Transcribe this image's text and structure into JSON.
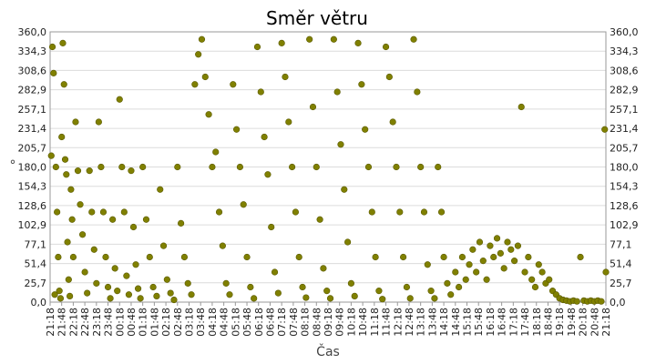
{
  "chart_data": {
    "type": "scatter",
    "title": "Směr větru",
    "xlabel": "Čas",
    "ylabel": "°",
    "ylim": [
      0,
      360
    ],
    "y_ticks": [
      "0,0",
      "25,7",
      "51,4",
      "77,1",
      "102,9",
      "128,6",
      "154,3",
      "180,0",
      "205,7",
      "231,4",
      "257,1",
      "282,9",
      "308,6",
      "334,3",
      "360,0"
    ],
    "x_ticks": [
      "21:18",
      "21:48",
      "22:18",
      "22:48",
      "23:18",
      "23:48",
      "00:18",
      "00:48",
      "01:18",
      "01:48",
      "02:18",
      "02:48",
      "03:18",
      "03:48",
      "04:18",
      "04:48",
      "05:18",
      "05:48",
      "06:18",
      "06:48",
      "07:18",
      "07:48",
      "08:18",
      "08:48",
      "09:18",
      "09:48",
      "10:18",
      "10:48",
      "11:18",
      "11:48",
      "12:18",
      "12:48",
      "13:18",
      "13:48",
      "14:18",
      "14:48",
      "15:18",
      "15:48",
      "16:18",
      "16:48",
      "17:18",
      "17:48",
      "18:18",
      "18:48",
      "19:18",
      "19:48",
      "20:18",
      "20:48",
      "21:18"
    ],
    "grid": true,
    "color": "#808000",
    "series": [
      {
        "points": [
          [
            0.1,
            195
          ],
          [
            0.2,
            340
          ],
          [
            0.3,
            305
          ],
          [
            0.4,
            10
          ],
          [
            0.5,
            180
          ],
          [
            0.6,
            120
          ],
          [
            0.7,
            60
          ],
          [
            0.8,
            15
          ],
          [
            0.9,
            5
          ],
          [
            1.0,
            220
          ],
          [
            1.1,
            345
          ],
          [
            1.2,
            290
          ],
          [
            1.3,
            190
          ],
          [
            1.4,
            170
          ],
          [
            1.5,
            80
          ],
          [
            1.6,
            30
          ],
          [
            1.7,
            8
          ],
          [
            1.8,
            150
          ],
          [
            1.9,
            110
          ],
          [
            2.0,
            60
          ],
          [
            2.2,
            240
          ],
          [
            2.4,
            175
          ],
          [
            2.6,
            130
          ],
          [
            2.8,
            90
          ],
          [
            3.0,
            40
          ],
          [
            3.2,
            12
          ],
          [
            3.4,
            175
          ],
          [
            3.6,
            120
          ],
          [
            3.8,
            70
          ],
          [
            4.0,
            25
          ],
          [
            4.2,
            240
          ],
          [
            4.4,
            180
          ],
          [
            4.6,
            120
          ],
          [
            4.8,
            60
          ],
          [
            5.0,
            20
          ],
          [
            5.2,
            5
          ],
          [
            5.4,
            110
          ],
          [
            5.6,
            45
          ],
          [
            5.8,
            15
          ],
          [
            6.0,
            270
          ],
          [
            6.2,
            180
          ],
          [
            6.4,
            120
          ],
          [
            6.6,
            35
          ],
          [
            6.8,
            10
          ],
          [
            7.0,
            175
          ],
          [
            7.2,
            100
          ],
          [
            7.4,
            50
          ],
          [
            7.6,
            18
          ],
          [
            7.8,
            5
          ],
          [
            8.0,
            180
          ],
          [
            8.3,
            110
          ],
          [
            8.6,
            60
          ],
          [
            8.9,
            20
          ],
          [
            9.2,
            8
          ],
          [
            9.5,
            150
          ],
          [
            9.8,
            75
          ],
          [
            10.1,
            30
          ],
          [
            10.4,
            12
          ],
          [
            10.7,
            3
          ],
          [
            11.0,
            180
          ],
          [
            11.3,
            105
          ],
          [
            11.6,
            60
          ],
          [
            11.9,
            25
          ],
          [
            12.2,
            10
          ],
          [
            12.5,
            290
          ],
          [
            12.8,
            330
          ],
          [
            13.1,
            350
          ],
          [
            13.4,
            300
          ],
          [
            13.7,
            250
          ],
          [
            14.0,
            180
          ],
          [
            14.3,
            200
          ],
          [
            14.6,
            120
          ],
          [
            14.9,
            75
          ],
          [
            15.2,
            25
          ],
          [
            15.5,
            10
          ],
          [
            15.8,
            290
          ],
          [
            16.1,
            230
          ],
          [
            16.4,
            180
          ],
          [
            16.7,
            130
          ],
          [
            17.0,
            60
          ],
          [
            17.3,
            20
          ],
          [
            17.6,
            5
          ],
          [
            17.9,
            340
          ],
          [
            18.2,
            280
          ],
          [
            18.5,
            220
          ],
          [
            18.8,
            170
          ],
          [
            19.1,
            100
          ],
          [
            19.4,
            40
          ],
          [
            19.7,
            12
          ],
          [
            20.0,
            345
          ],
          [
            20.3,
            300
          ],
          [
            20.6,
            240
          ],
          [
            20.9,
            180
          ],
          [
            21.2,
            120
          ],
          [
            21.5,
            60
          ],
          [
            21.8,
            20
          ],
          [
            22.1,
            6
          ],
          [
            22.4,
            350
          ],
          [
            22.7,
            260
          ],
          [
            23.0,
            180
          ],
          [
            23.3,
            110
          ],
          [
            23.6,
            45
          ],
          [
            23.9,
            15
          ],
          [
            24.2,
            5
          ],
          [
            24.5,
            350
          ],
          [
            24.8,
            280
          ],
          [
            25.1,
            210
          ],
          [
            25.4,
            150
          ],
          [
            25.7,
            80
          ],
          [
            26.0,
            25
          ],
          [
            26.3,
            8
          ],
          [
            26.6,
            345
          ],
          [
            26.9,
            290
          ],
          [
            27.2,
            230
          ],
          [
            27.5,
            180
          ],
          [
            27.8,
            120
          ],
          [
            28.1,
            60
          ],
          [
            28.4,
            15
          ],
          [
            28.7,
            4
          ],
          [
            29.0,
            340
          ],
          [
            29.3,
            300
          ],
          [
            29.6,
            240
          ],
          [
            29.9,
            180
          ],
          [
            30.2,
            120
          ],
          [
            30.5,
            60
          ],
          [
            30.8,
            20
          ],
          [
            31.1,
            5
          ],
          [
            31.4,
            350
          ],
          [
            31.7,
            280
          ],
          [
            32.0,
            180
          ],
          [
            32.3,
            120
          ],
          [
            32.6,
            50
          ],
          [
            32.9,
            15
          ],
          [
            33.2,
            5
          ],
          [
            33.5,
            180
          ],
          [
            33.8,
            120
          ],
          [
            34.0,
            60
          ],
          [
            34.3,
            25
          ],
          [
            34.6,
            10
          ],
          [
            35.0,
            40
          ],
          [
            35.3,
            20
          ],
          [
            35.6,
            60
          ],
          [
            35.9,
            30
          ],
          [
            36.2,
            50
          ],
          [
            36.5,
            70
          ],
          [
            36.8,
            40
          ],
          [
            37.1,
            80
          ],
          [
            37.4,
            55
          ],
          [
            37.7,
            30
          ],
          [
            38.0,
            75
          ],
          [
            38.3,
            60
          ],
          [
            38.6,
            85
          ],
          [
            38.9,
            65
          ],
          [
            39.2,
            45
          ],
          [
            39.5,
            80
          ],
          [
            39.8,
            70
          ],
          [
            40.1,
            55
          ],
          [
            40.4,
            75
          ],
          [
            40.7,
            260
          ],
          [
            41.0,
            40
          ],
          [
            41.3,
            60
          ],
          [
            41.6,
            30
          ],
          [
            41.9,
            20
          ],
          [
            42.2,
            50
          ],
          [
            42.5,
            40
          ],
          [
            42.8,
            25
          ],
          [
            43.1,
            30
          ],
          [
            43.4,
            15
          ],
          [
            43.7,
            10
          ],
          [
            44.0,
            5
          ],
          [
            44.3,
            3
          ],
          [
            44.6,
            2
          ],
          [
            44.9,
            1
          ],
          [
            45.2,
            2
          ],
          [
            45.5,
            1
          ],
          [
            45.8,
            60
          ],
          [
            46.1,
            2
          ],
          [
            46.4,
            1
          ],
          [
            46.7,
            2
          ],
          [
            47.0,
            1
          ],
          [
            47.3,
            2
          ],
          [
            47.6,
            1
          ],
          [
            47.9,
            230
          ],
          [
            48.0,
            40
          ]
        ]
      }
    ]
  }
}
